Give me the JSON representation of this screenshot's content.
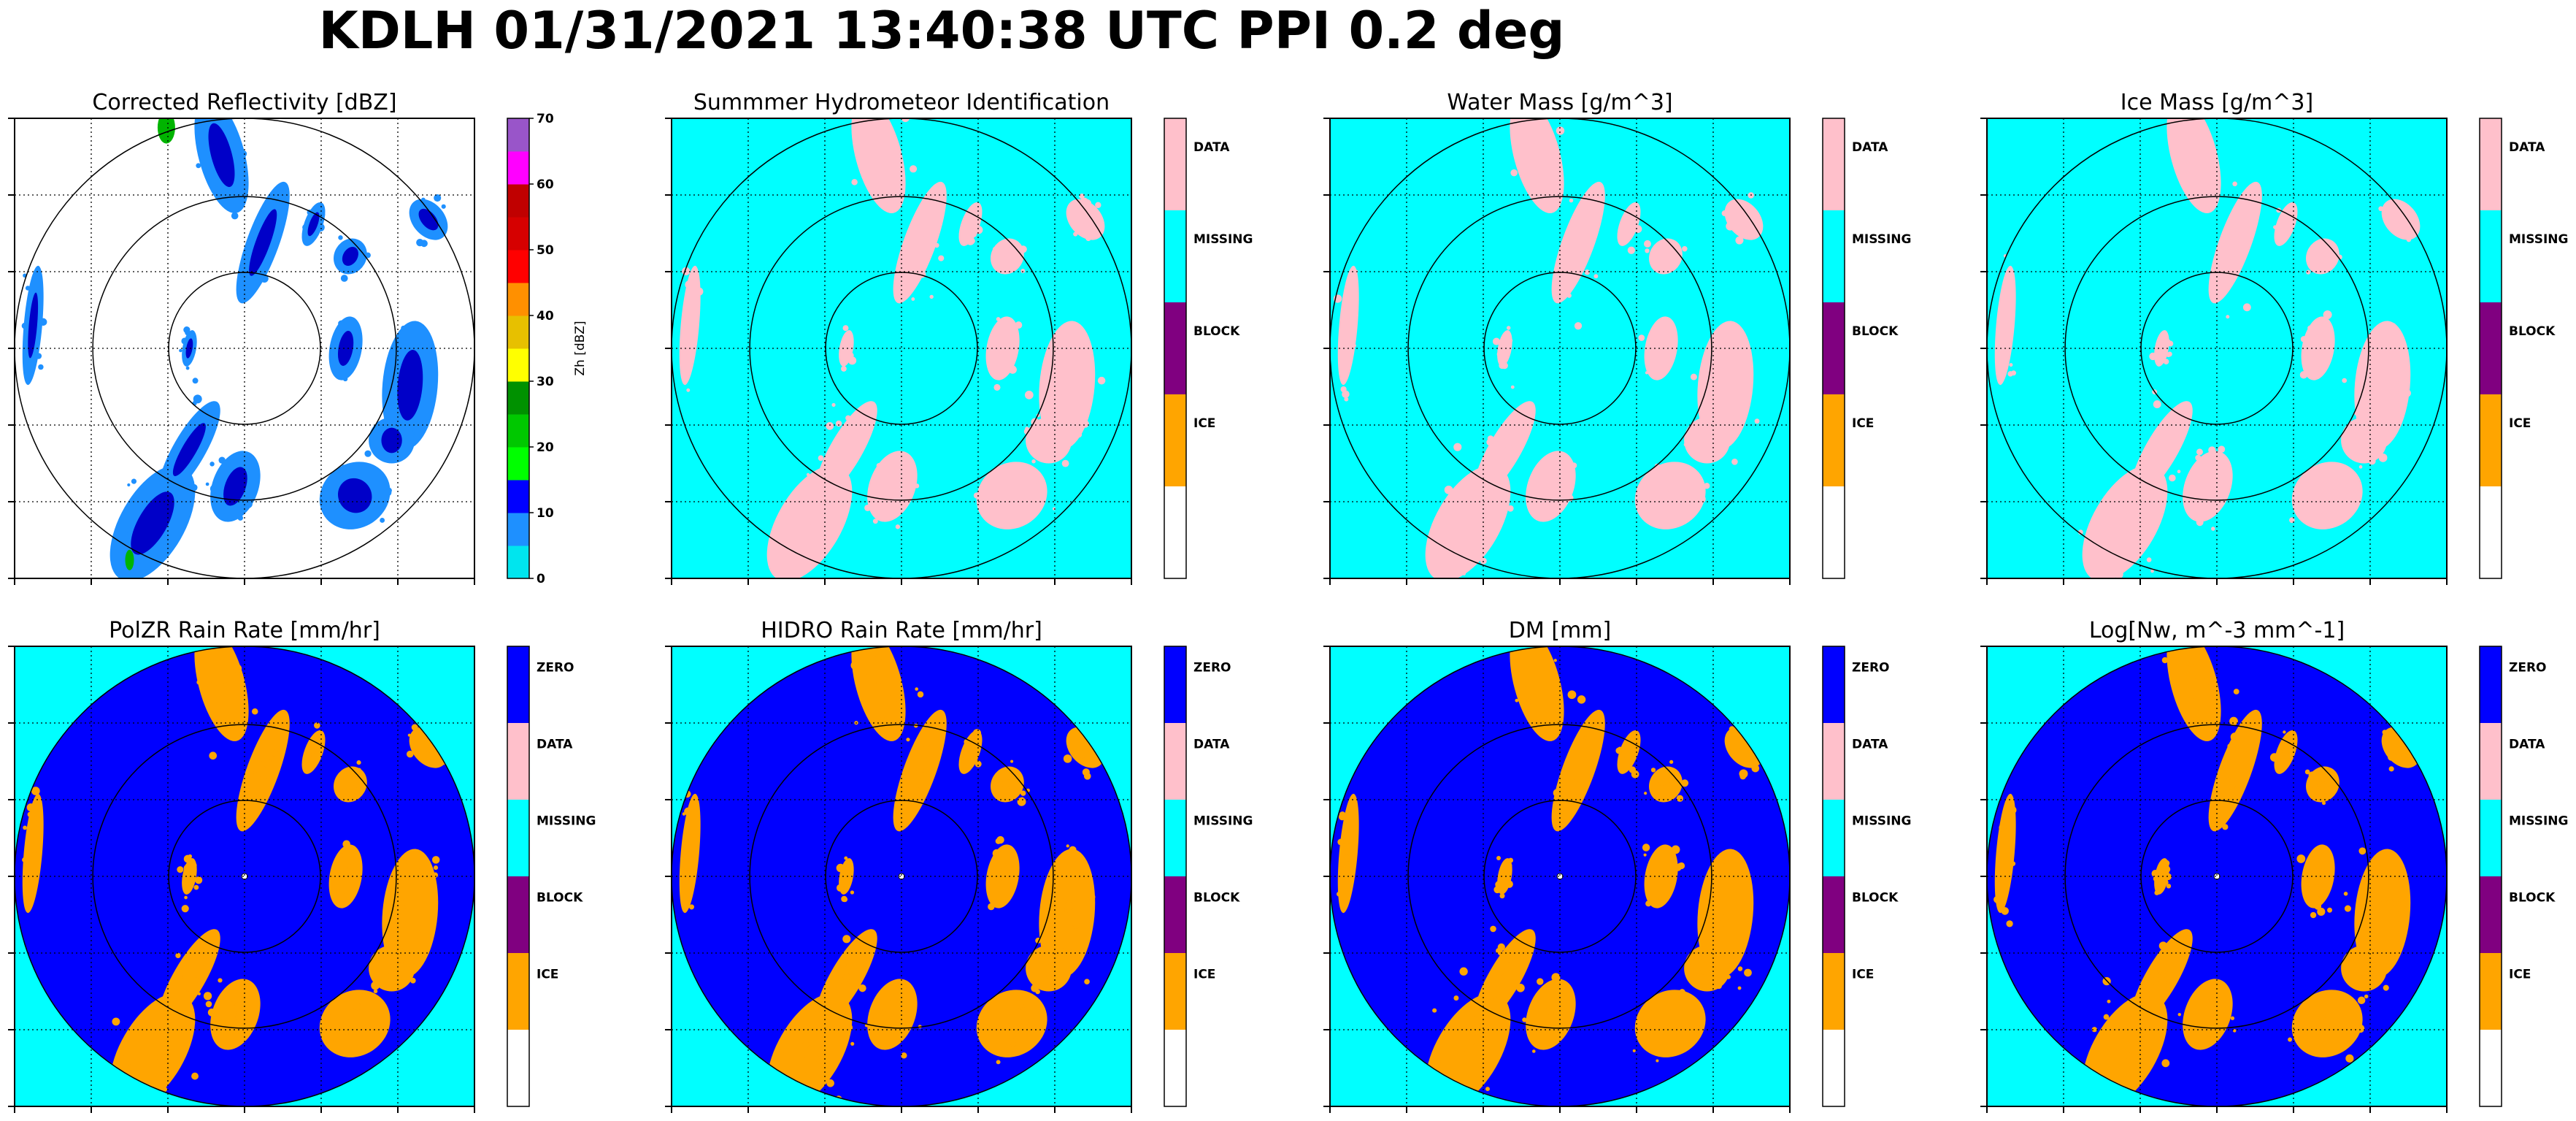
{
  "suptitle": "KDLH 01/31/2021 13:40:38 UTC PPI 0.2 deg",
  "colors": {
    "white": "#ffffff",
    "cyan": "#00ffff",
    "pink": "#ffc0cb",
    "purple": "#800080",
    "orange": "#ffa500",
    "blue": "#0000ff",
    "ring": "#000000",
    "refl_cyan": "#00e5ee",
    "refl_lightblue": "#1e90ff",
    "refl_darkblue": "#0000c8",
    "refl_green": "#00b400"
  },
  "chart_data": [
    {
      "type": "heatmap",
      "title": "Corrected Reflectivity [dBZ]",
      "style": "reflectivity",
      "colorbar": {
        "type": "continuous",
        "label": "Zh [dBZ]",
        "ticks": [
          "0",
          "10",
          "20",
          "30",
          "40",
          "50",
          "60",
          "70"
        ],
        "range": [
          0,
          70
        ],
        "colors": [
          "#00e5ee",
          "#1e90ff",
          "#0000ff",
          "#00ff00",
          "#00c800",
          "#009100",
          "#ffff00",
          "#e7c000",
          "#ff9000",
          "#ff0000",
          "#d60000",
          "#c00000",
          "#ff00ff",
          "#9955c9"
        ]
      }
    },
    {
      "type": "heatmap",
      "title": "Summmer Hydrometeor Identification",
      "style": "hid",
      "colorbar": {
        "type": "categorical",
        "categories": [
          "DATA",
          "MISSING",
          "BLOCK",
          "ICE",
          ""
        ],
        "colors": [
          "#ffc0cb",
          "#00ffff",
          "#800080",
          "#ffa500",
          "#ffffff"
        ]
      }
    },
    {
      "type": "heatmap",
      "title": "Water Mass [g/m^3]",
      "style": "hid",
      "colorbar": {
        "type": "categorical",
        "categories": [
          "DATA",
          "MISSING",
          "BLOCK",
          "ICE",
          ""
        ],
        "colors": [
          "#ffc0cb",
          "#00ffff",
          "#800080",
          "#ffa500",
          "#ffffff"
        ]
      }
    },
    {
      "type": "heatmap",
      "title": "Ice Mass [g/m^3]",
      "style": "hid",
      "colorbar": {
        "type": "categorical",
        "categories": [
          "DATA",
          "MISSING",
          "BLOCK",
          "ICE",
          ""
        ],
        "colors": [
          "#ffc0cb",
          "#00ffff",
          "#800080",
          "#ffa500",
          "#ffffff"
        ]
      }
    },
    {
      "type": "heatmap",
      "title": "PolZR Rain Rate [mm/hr]",
      "style": "rate",
      "colorbar": {
        "type": "categorical",
        "categories": [
          "ZERO",
          "DATA",
          "MISSING",
          "BLOCK",
          "ICE",
          ""
        ],
        "colors": [
          "#0000ff",
          "#ffc0cb",
          "#00ffff",
          "#800080",
          "#ffa500",
          "#ffffff"
        ]
      }
    },
    {
      "type": "heatmap",
      "title": "HIDRO Rain Rate [mm/hr]",
      "style": "rate",
      "colorbar": {
        "type": "categorical",
        "categories": [
          "ZERO",
          "DATA",
          "MISSING",
          "BLOCK",
          "ICE",
          ""
        ],
        "colors": [
          "#0000ff",
          "#ffc0cb",
          "#00ffff",
          "#800080",
          "#ffa500",
          "#ffffff"
        ]
      }
    },
    {
      "type": "heatmap",
      "title": "DM [mm]",
      "style": "rate",
      "colorbar": {
        "type": "categorical",
        "categories": [
          "ZERO",
          "DATA",
          "MISSING",
          "BLOCK",
          "ICE",
          ""
        ],
        "colors": [
          "#0000ff",
          "#ffc0cb",
          "#00ffff",
          "#800080",
          "#ffa500",
          "#ffffff"
        ]
      }
    },
    {
      "type": "heatmap",
      "title": "Log[Nw, m^-3 mm^-1]",
      "style": "rate",
      "colorbar": {
        "type": "categorical",
        "categories": [
          "ZERO",
          "DATA",
          "MISSING",
          "BLOCK",
          "ICE",
          ""
        ],
        "colors": [
          "#0000ff",
          "#ffc0cb",
          "#00ffff",
          "#800080",
          "#ffa500",
          "#ffffff"
        ]
      }
    }
  ]
}
